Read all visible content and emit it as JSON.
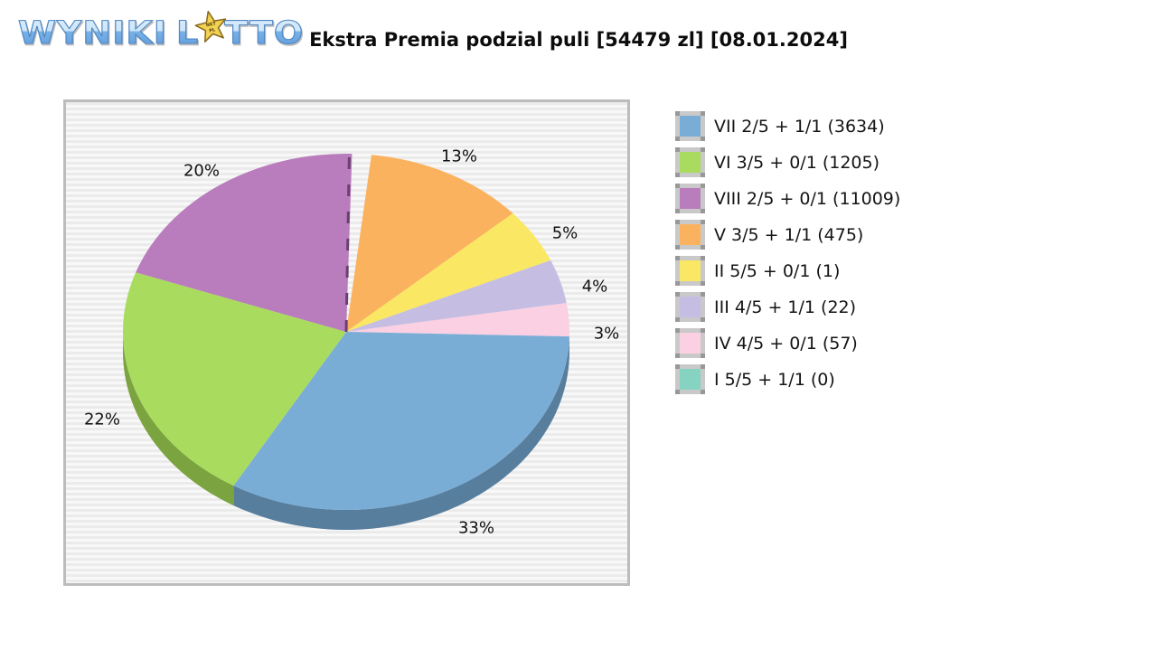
{
  "logo": {
    "word1": "WYNIKI",
    "word2_before_star": "L",
    "word2_after_star": "TTO",
    "star_text_line1": "NET",
    "star_text_line2": "PL"
  },
  "header": {
    "title": "Ekstra Premia podzial puli [54479 zl] [08.01.2024]"
  },
  "chart_data": {
    "type": "pie",
    "style": "3d-exploded-first-slice",
    "title": "Ekstra Premia podzial puli [54479 zl] [08.01.2024]",
    "pool_total_label": "54479 zl",
    "date_label": "08.01.2024",
    "value_label_format": "percent",
    "legend_position": "right",
    "start_angle": "top",
    "direction": "clockwise",
    "background": "horizontal-stripes",
    "slices": [
      {
        "label": "VII 2/5 + 1/1 (3634)",
        "tier": "VII 2/5 + 1/1",
        "count": 3634,
        "percent": 33,
        "color": "#7aadd6",
        "side_color": "#587e9d"
      },
      {
        "label": "VI 3/5 + 0/1 (1205)",
        "tier": "VI 3/5 + 0/1",
        "count": 1205,
        "percent": 22,
        "color": "#a9dc5e",
        "side_color": "#7ba33f"
      },
      {
        "label": "VIII 2/5 + 0/1 (11009)",
        "tier": "VIII 2/5 + 0/1",
        "count": 11009,
        "percent": 20,
        "color": "#b97cbc",
        "side_color": "#8a5a8c"
      },
      {
        "label": "V 3/5 + 1/1 (475)",
        "tier": "V 3/5 + 1/1",
        "count": 475,
        "percent": 13,
        "color": "#fbb25e",
        "side_color": "#c28443"
      },
      {
        "label": "II 5/5 + 0/1 (1)",
        "tier": "II 5/5 + 0/1",
        "count": 1,
        "percent": 5,
        "color": "#fae763",
        "side_color": "#c2b245"
      },
      {
        "label": "III 4/5 + 1/1 (22)",
        "tier": "III 4/5 + 1/1",
        "count": 22,
        "percent": 4,
        "color": "#c5bee2",
        "side_color": "#9691b3"
      },
      {
        "label": "IV 4/5 + 0/1 (57)",
        "tier": "IV 4/5 + 0/1",
        "count": 57,
        "percent": 3,
        "color": "#fbd0e3",
        "side_color": "#c7a2b4"
      },
      {
        "label": "I 5/5 + 1/1 (0)",
        "tier": "I 5/5 + 1/1",
        "count": 0,
        "percent": 0,
        "color": "#85d3c0",
        "side_color": "#63a392"
      }
    ],
    "draw_order": [
      3,
      4,
      5,
      6,
      0,
      1,
      2
    ],
    "zero_slice_index": 7,
    "zero_slice_line_color": "#6b4071"
  },
  "legend": {
    "items_note": "displayed top to bottom in same order as chart_data.slices"
  }
}
